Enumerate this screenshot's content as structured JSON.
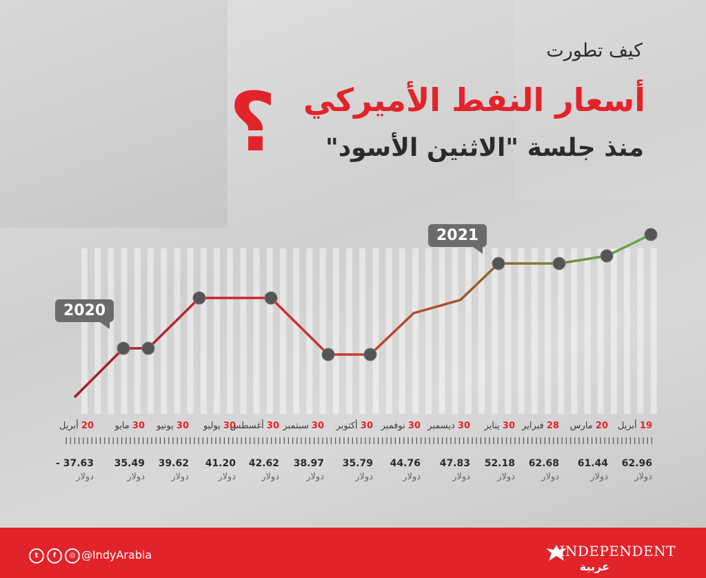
{
  "title": {
    "line1": "كيف تطورت",
    "line2": "أسعار النفط الأميركي",
    "line3": "منذ جلسة \"الاثنين الأسود\"",
    "qmark": "؟"
  },
  "badges": {
    "year_start": "2020",
    "year_end": "2021"
  },
  "colors": {
    "accent": "#e3232a",
    "line_start": "#b3202b",
    "line_end": "#5fb04a",
    "marker": "#555555"
  },
  "chart_data": {
    "type": "line",
    "title": "أسعار النفط الأميركي",
    "unit": "دولار",
    "points": [
      {
        "day": "20",
        "month": "أبريل",
        "price": -37.63,
        "price_label": "- 37.63"
      },
      {
        "day": "30",
        "month": "مايو",
        "price": 35.49,
        "price_label": "35.49"
      },
      {
        "day": "30",
        "month": "يونيو",
        "price": 39.62,
        "price_label": "39.62"
      },
      {
        "day": "30",
        "month": "يوليو",
        "price": 41.2,
        "price_label": "41.20"
      },
      {
        "day": "30",
        "month": "أغسطس",
        "price": 42.62,
        "price_label": "42.62"
      },
      {
        "day": "30",
        "month": "سبتمبر",
        "price": 38.97,
        "price_label": "38.97"
      },
      {
        "day": "30",
        "month": "أكتوبر",
        "price": 35.79,
        "price_label": "35.79"
      },
      {
        "day": "30",
        "month": "نوفمبر",
        "price": 44.76,
        "price_label": "44.76"
      },
      {
        "day": "30",
        "month": "ديسمبر",
        "price": 47.83,
        "price_label": "47.83"
      },
      {
        "day": "30",
        "month": "يناير",
        "price": 52.18,
        "price_label": "52.18"
      },
      {
        "day": "28",
        "month": "فبراير",
        "price": 62.68,
        "price_label": "62.68"
      },
      {
        "day": "20",
        "month": "مارس",
        "price": 61.44,
        "price_label": "61.44"
      },
      {
        "day": "19",
        "month": "أبريل",
        "price": 62.96,
        "price_label": "62.96"
      }
    ]
  },
  "footer": {
    "handle": "@IndyArabia",
    "brand": "INDEPENDENT",
    "brand_ar": "عربية",
    "social_icons": [
      "twitter-icon",
      "facebook-icon",
      "instagram-icon"
    ]
  }
}
